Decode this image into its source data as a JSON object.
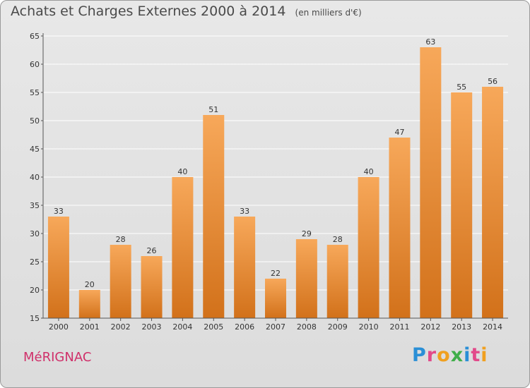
{
  "header": {
    "title": "Achats et Charges Externes 2000 à 2014",
    "unit": "(en milliers d'€)"
  },
  "footer": {
    "commune": "MéRIGNAC",
    "brand_letters": [
      {
        "ch": "P",
        "color": "#2a8fd6"
      },
      {
        "ch": "r",
        "color": "#e24a8a"
      },
      {
        "ch": "o",
        "color": "#f0a020"
      },
      {
        "ch": "x",
        "color": "#3fae49"
      },
      {
        "ch": "i",
        "color": "#2a8fd6"
      },
      {
        "ch": "t",
        "color": "#e24a8a"
      },
      {
        "ch": "i",
        "color": "#f0a020"
      }
    ]
  },
  "chart_data": {
    "type": "bar",
    "title": "Achats et Charges Externes 2000 à 2014",
    "unit": "(en milliers d'€)",
    "categories": [
      "2000",
      "2001",
      "2002",
      "2003",
      "2004",
      "2005",
      "2006",
      "2007",
      "2008",
      "2009",
      "2010",
      "2011",
      "2012",
      "2013",
      "2014"
    ],
    "values": [
      33,
      20,
      28,
      26,
      40,
      51,
      33,
      22,
      29,
      28,
      40,
      47,
      63,
      55,
      56
    ],
    "ylim": [
      15,
      65
    ],
    "yticks": [
      15,
      20,
      25,
      30,
      35,
      40,
      45,
      50,
      55,
      60,
      65
    ],
    "grid": true,
    "colors": {
      "bar_top": "#f7a85a",
      "bar_bottom": "#d2711a",
      "grid": "#ffffff"
    }
  }
}
